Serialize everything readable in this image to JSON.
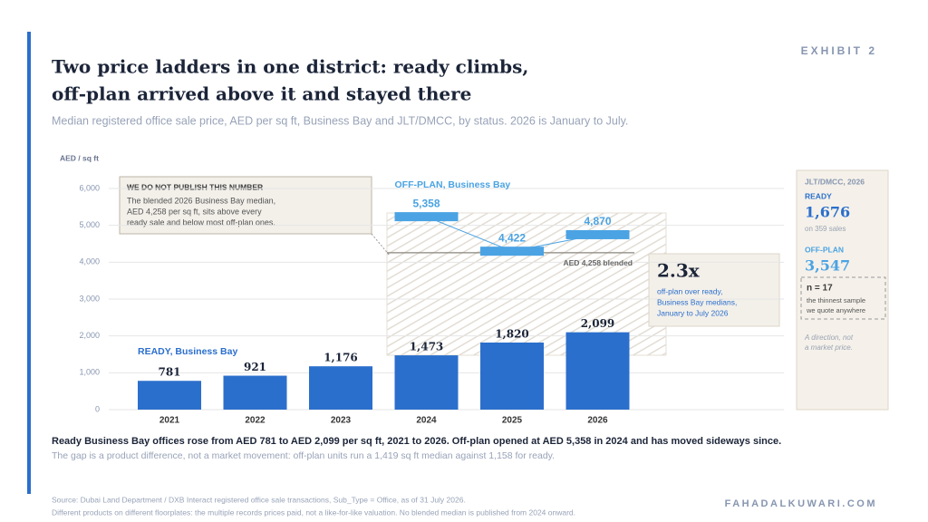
{
  "exhibit": "EXHIBIT 2",
  "title_lines": [
    "Two price ladders in one district: ready climbs,",
    "off-plan arrived above it and stayed there"
  ],
  "subtitle": "Median registered office sale price, AED per sq ft, Business Bay and JLT/DMCC, by status. 2026 is January to July.",
  "chart_data": {
    "type": "bar",
    "y_axis_label": "AED / sq ft",
    "categories": [
      "2021",
      "2022",
      "2023",
      "2024",
      "2025",
      "2026"
    ],
    "ylim": [
      0,
      6000
    ],
    "yticks": [
      0,
      {
        "value": 1000,
        "label": "1,000"
      },
      {
        "value": 2000,
        "label": "2,000"
      },
      {
        "value": 3000,
        "label": "3,000"
      },
      {
        "value": 4000,
        "label": "4,000"
      },
      {
        "value": 5000,
        "label": "5,000"
      },
      {
        "value": 6000,
        "label": "6,000"
      }
    ],
    "grid": true,
    "series": [
      {
        "name": "READY, Business Bay",
        "type": "bar",
        "color": "#2b6fcc",
        "values": [
          781,
          921,
          1176,
          1473,
          1820,
          2099
        ],
        "value_labels": [
          "781",
          "921",
          "1,176",
          "1,473",
          "1,820",
          "2,099"
        ]
      },
      {
        "name": "OFF-PLAN, Business Bay",
        "type": "marker",
        "color": "#4ba3e3",
        "values": [
          null,
          null,
          null,
          5358,
          4422,
          4870
        ],
        "value_labels": [
          null,
          null,
          null,
          "5,358",
          "4,422",
          "4,870"
        ]
      }
    ],
    "reference_line": {
      "value": 4258,
      "label": "AED 4,258 blended"
    },
    "callout": {
      "heading": "WE DO NOT PUBLISH THIS NUMBER",
      "lines": [
        "The blended 2026 Business Bay median,",
        "AED 4,258 per sq ft, sits above every",
        "ready sale and below most off-plan ones."
      ]
    },
    "ratio": {
      "value": "2.3x",
      "lines": [
        "off-plan over ready,",
        "Business Bay medians,",
        "January to July 2026"
      ]
    }
  },
  "side_panel": {
    "title": "JLT/DMCC, 2026",
    "ready_label": "READY",
    "ready_value": "1,676",
    "ready_note": "on 359 sales",
    "offplan_label": "OFF-PLAN",
    "offplan_value": "3,547",
    "sample": "n = 17",
    "sample_lines": [
      "the thinnest sample",
      "we quote anywhere"
    ],
    "caveat_lines": [
      "A direction, not",
      "a market price."
    ]
  },
  "takeaway": "Ready Business Bay offices rose from AED 781 to AED 2,099 per sq ft, 2021 to 2026. Off-plan opened at AED 5,358 in 2024 and has moved sideways since.",
  "note": "The gap is a product difference, not a market movement: off-plan units run a 1,419 sq ft median against 1,158 for ready.",
  "source_lines": [
    "Source: Dubai Land Department / DXB Interact registered office sale transactions, Sub_Type = Office, as of 31 July 2026.",
    "Different products on different floorplates: the multiple records prices paid, not a like-for-like valuation. No blended median is published from 2024 onward."
  ],
  "brand": "FAHADALKUWARI.COM"
}
